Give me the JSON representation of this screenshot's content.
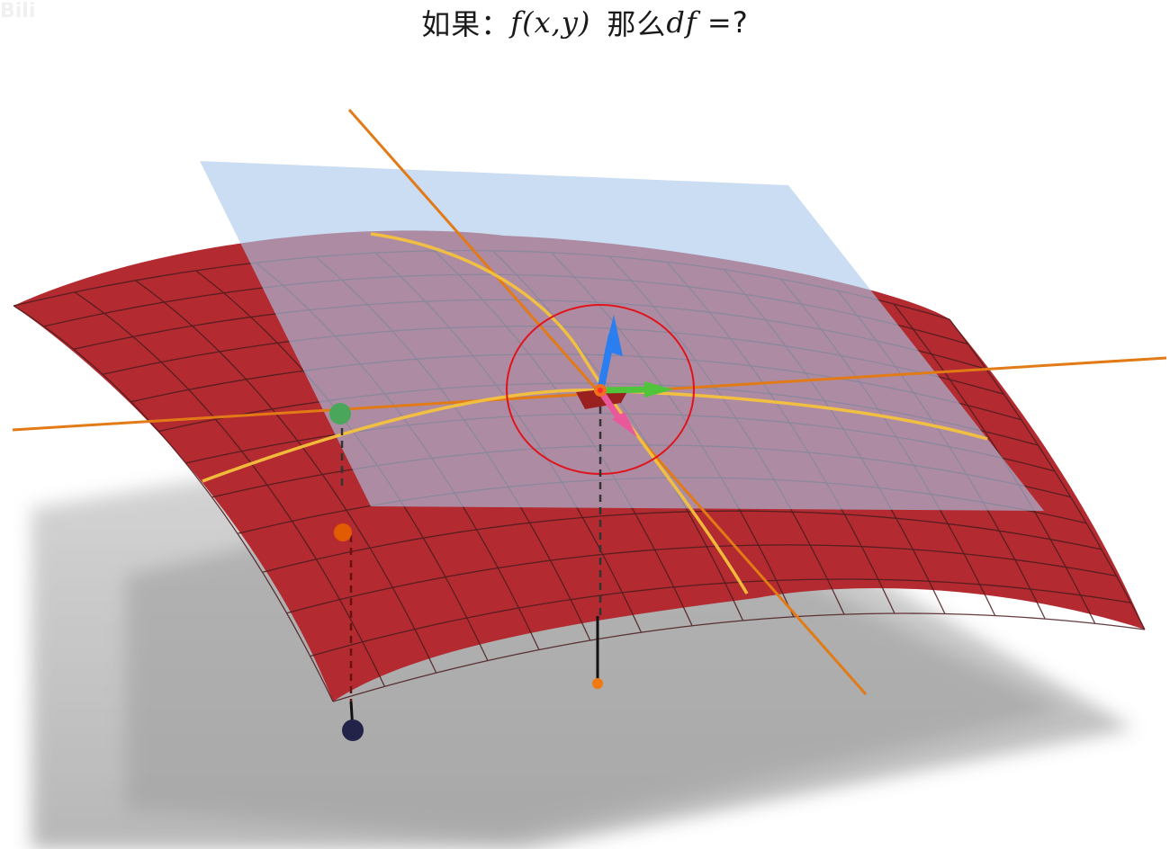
{
  "header": {
    "prefix": "如果：",
    "func": "f(x,y)",
    "then": "那么",
    "diff": "df =",
    "question": "?"
  },
  "watermark": "Bili",
  "subtitle": "",
  "colors": {
    "surface": "#b32b30",
    "grid": "#4a1c1f",
    "tangent_plane": "#9ec3e6",
    "floor": "#b4b4b4",
    "tangent_line": "#e27a16",
    "curve": "#f3c43a",
    "circle": "#e0141c",
    "vec_z": "#2a7ef0",
    "vec_x": "#50c43a",
    "vec_y": "#e8589a",
    "ball_green": "#4aa65a",
    "ball_orange": "#e35b00",
    "ball_navy": "#232248"
  }
}
